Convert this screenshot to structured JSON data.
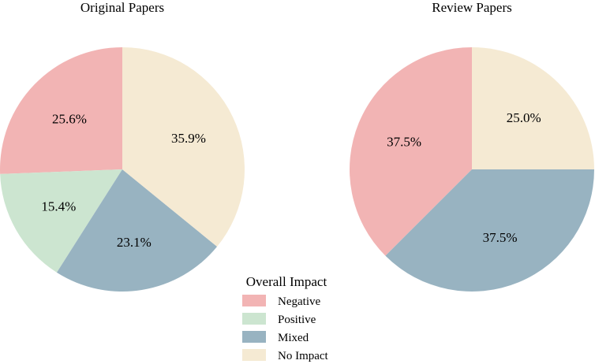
{
  "chart_data": [
    {
      "type": "pie",
      "title": "Original Papers",
      "categories": [
        "Negative",
        "Positive",
        "Mixed",
        "No Impact"
      ],
      "values": [
        25.6,
        15.4,
        23.1,
        35.9
      ],
      "labels": [
        "25.6%",
        "15.4%",
        "23.1%",
        "35.9%"
      ],
      "start_angle_deg": 90,
      "direction": "counterclockwise"
    },
    {
      "type": "pie",
      "title": "Review Papers",
      "categories": [
        "Negative",
        "Positive",
        "Mixed",
        "No Impact"
      ],
      "values": [
        37.5,
        0,
        37.5,
        25.0
      ],
      "labels": [
        "37.5%",
        "",
        "37.5%",
        "25.0%"
      ],
      "start_angle_deg": 90,
      "direction": "counterclockwise"
    }
  ],
  "legend": {
    "title": "Overall Impact",
    "placement": "bottom-center",
    "items": [
      {
        "label": "Negative",
        "color": "#f2b4b4"
      },
      {
        "label": "Positive",
        "color": "#cce5d0"
      },
      {
        "label": "Mixed",
        "color": "#98b3c1"
      },
      {
        "label": "No Impact",
        "color": "#f5ead3"
      }
    ]
  }
}
